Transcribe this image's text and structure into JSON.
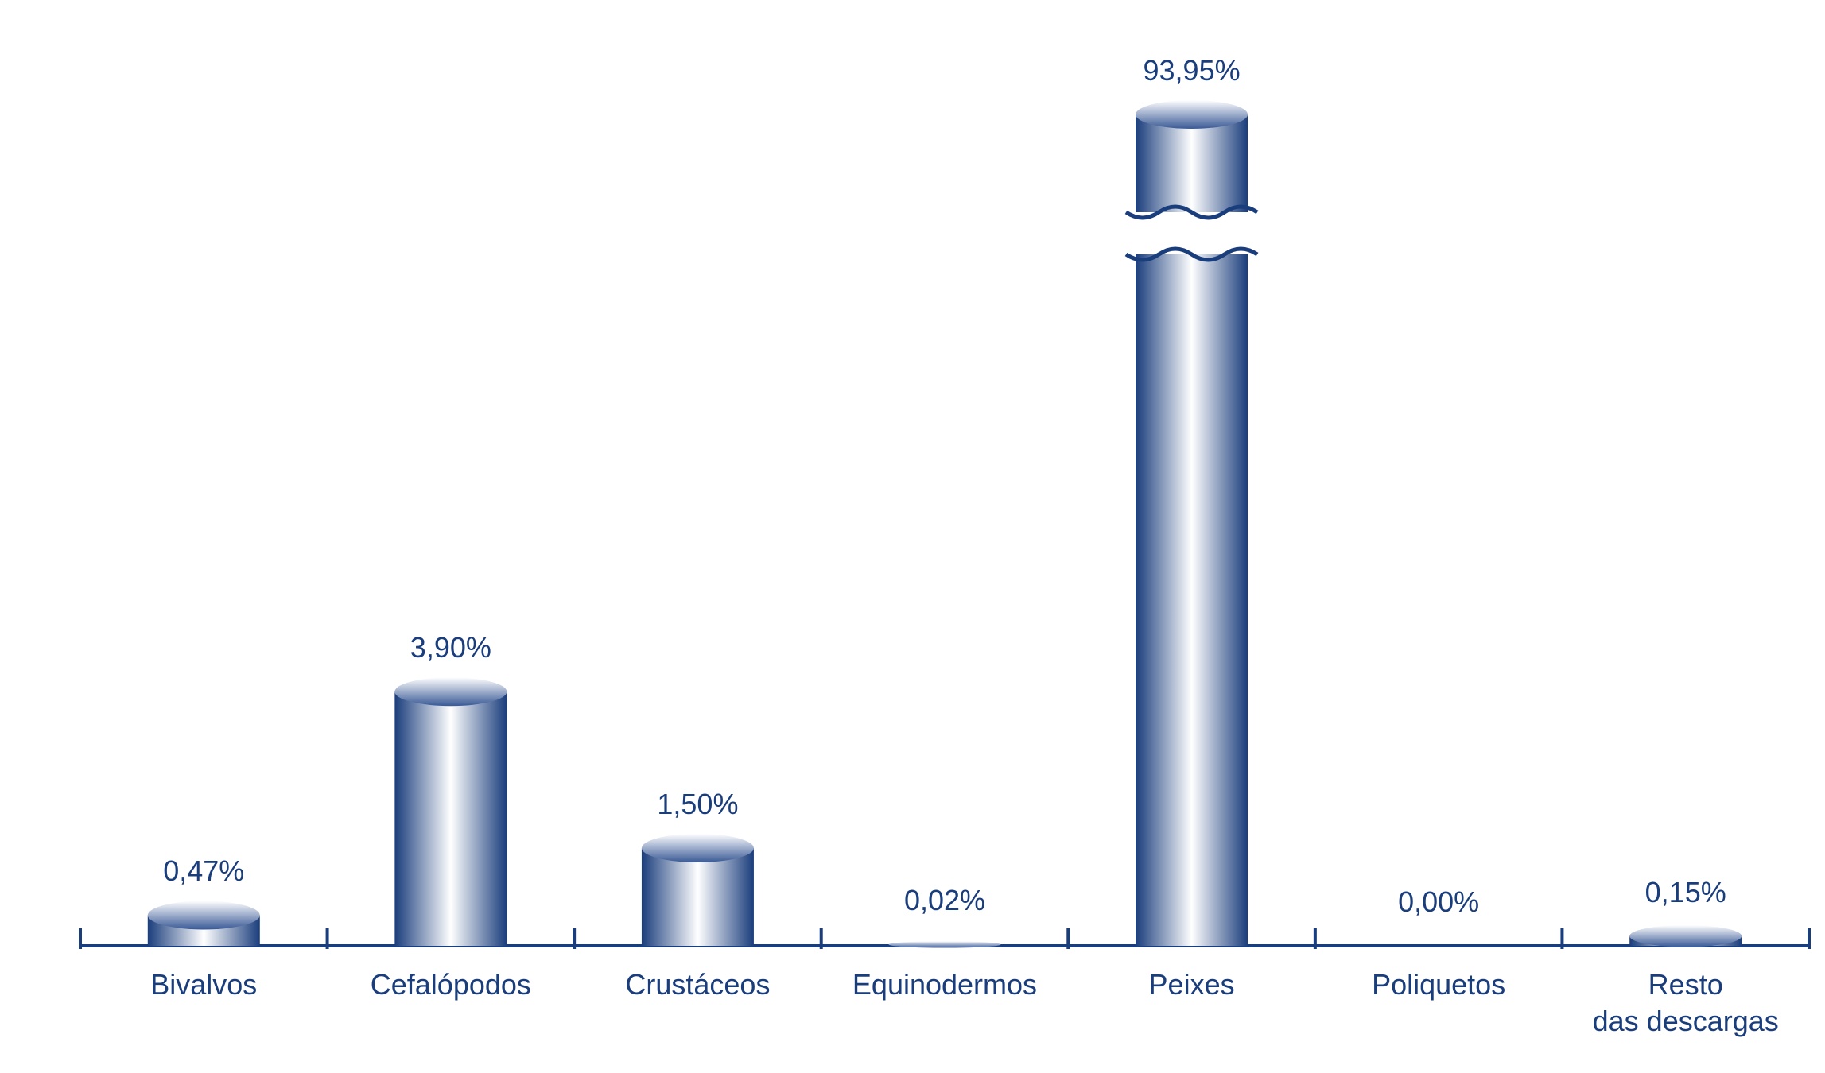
{
  "chart_data": {
    "type": "cylinder-bar",
    "categories": [
      "Bivalvos",
      "Cefalópodos",
      "Crustáceos",
      "Equinodermos",
      "Peixes",
      "Poliquetos",
      "Resto\ndas descargas"
    ],
    "values": [
      0.47,
      3.9,
      1.5,
      0.02,
      93.95,
      0.0,
      0.15
    ],
    "value_labels": [
      "0,47%",
      "3,90%",
      "1,50%",
      "0,02%",
      "93,95%",
      "0,00%",
      "0,15%"
    ],
    "color": "#1a3d7c"
  }
}
